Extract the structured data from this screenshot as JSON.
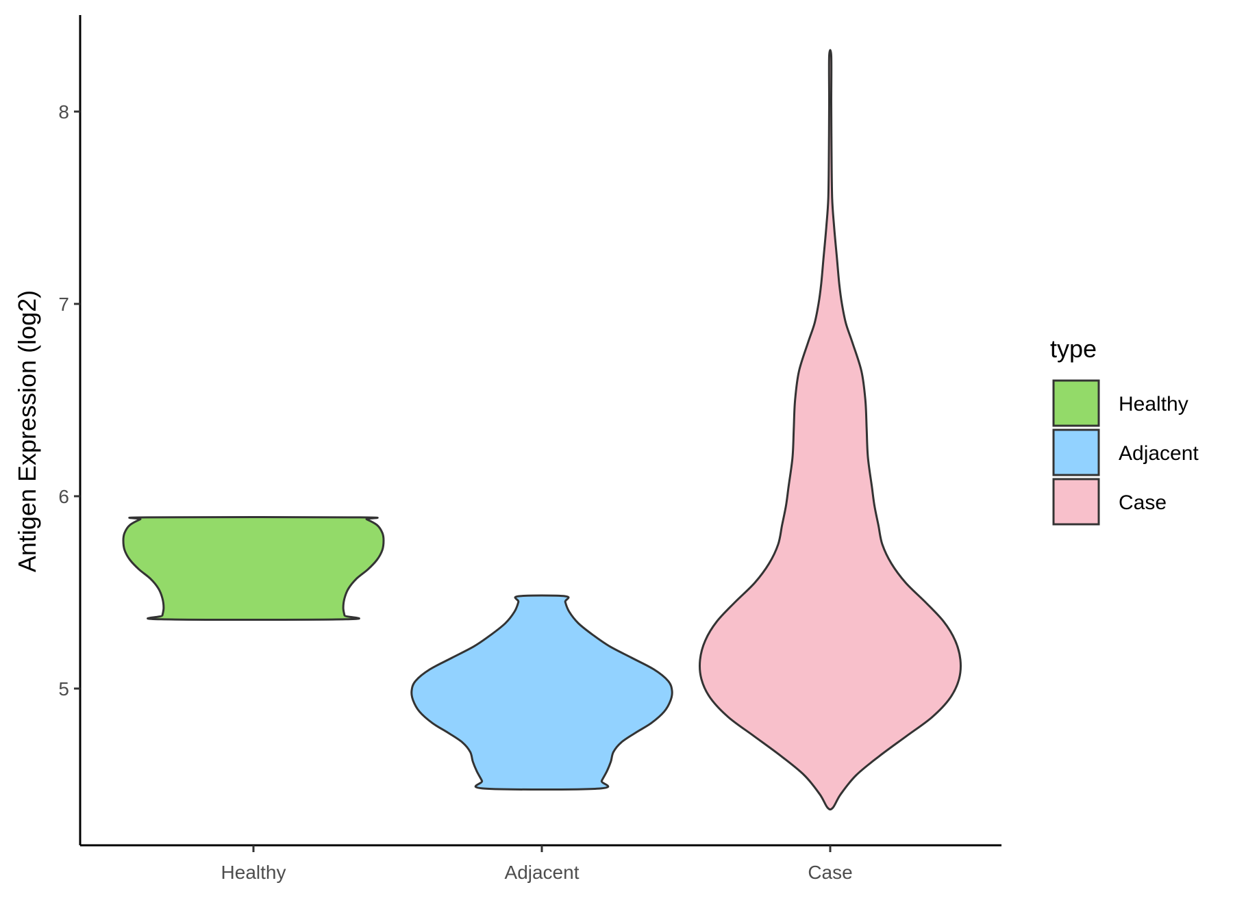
{
  "chart_data": {
    "type": "violin",
    "title": "",
    "xlabel": "",
    "ylabel": "Antigen Expression (log2)",
    "categories": [
      "Healthy",
      "Adjacent",
      "Case"
    ],
    "yticks": [
      5,
      6,
      7,
      8
    ],
    "ytick_labels": [
      "5",
      "6",
      "7",
      "8"
    ],
    "ylim": [
      4.2,
      8.5
    ],
    "grid": false,
    "legend": {
      "title": "type",
      "position": "right",
      "entries": [
        "Healthy",
        "Adjacent",
        "Case"
      ]
    },
    "series": [
      {
        "name": "Healthy",
        "color": "#93DA69",
        "min": 5.36,
        "max": 5.89,
        "density": [
          [
            5.36,
            0.71
          ],
          [
            5.38,
            0.7
          ],
          [
            5.42,
            0.69
          ],
          [
            5.47,
            0.7
          ],
          [
            5.52,
            0.73
          ],
          [
            5.57,
            0.79
          ],
          [
            5.62,
            0.88
          ],
          [
            5.67,
            0.95
          ],
          [
            5.72,
            0.99
          ],
          [
            5.77,
            1.0
          ],
          [
            5.81,
            0.99
          ],
          [
            5.85,
            0.95
          ],
          [
            5.88,
            0.87
          ],
          [
            5.89,
            0.82
          ]
        ]
      },
      {
        "name": "Adjacent",
        "color": "#92D2FF",
        "min": 4.48,
        "max": 5.48,
        "density": [
          [
            4.48,
            0.44
          ],
          [
            4.52,
            0.46
          ],
          [
            4.57,
            0.5
          ],
          [
            4.62,
            0.53
          ],
          [
            4.67,
            0.55
          ],
          [
            4.72,
            0.61
          ],
          [
            4.77,
            0.72
          ],
          [
            4.82,
            0.84
          ],
          [
            4.88,
            0.94
          ],
          [
            4.94,
            0.99
          ],
          [
            4.99,
            1.0
          ],
          [
            5.04,
            0.97
          ],
          [
            5.1,
            0.86
          ],
          [
            5.16,
            0.69
          ],
          [
            5.22,
            0.52
          ],
          [
            5.28,
            0.39
          ],
          [
            5.34,
            0.28
          ],
          [
            5.4,
            0.21
          ],
          [
            5.45,
            0.18
          ],
          [
            5.48,
            0.18
          ]
        ]
      },
      {
        "name": "Case",
        "color": "#F8C0CB",
        "min": 4.38,
        "max": 8.29,
        "density": [
          [
            4.38,
            0.02
          ],
          [
            4.45,
            0.08
          ],
          [
            4.55,
            0.2
          ],
          [
            4.65,
            0.38
          ],
          [
            4.75,
            0.58
          ],
          [
            4.85,
            0.78
          ],
          [
            4.95,
            0.92
          ],
          [
            5.05,
            0.99
          ],
          [
            5.15,
            1.0
          ],
          [
            5.25,
            0.96
          ],
          [
            5.35,
            0.87
          ],
          [
            5.45,
            0.73
          ],
          [
            5.55,
            0.58
          ],
          [
            5.65,
            0.47
          ],
          [
            5.75,
            0.4
          ],
          [
            5.85,
            0.37
          ],
          [
            5.95,
            0.34
          ],
          [
            6.05,
            0.32
          ],
          [
            6.2,
            0.29
          ],
          [
            6.35,
            0.28
          ],
          [
            6.5,
            0.27
          ],
          [
            6.65,
            0.24
          ],
          [
            6.8,
            0.17
          ],
          [
            6.9,
            0.12
          ],
          [
            7.0,
            0.09
          ],
          [
            7.1,
            0.07
          ],
          [
            7.25,
            0.05
          ],
          [
            7.4,
            0.03
          ],
          [
            7.55,
            0.015
          ],
          [
            7.8,
            0.01
          ],
          [
            8.05,
            0.008
          ],
          [
            8.29,
            0.008
          ]
        ]
      }
    ]
  }
}
